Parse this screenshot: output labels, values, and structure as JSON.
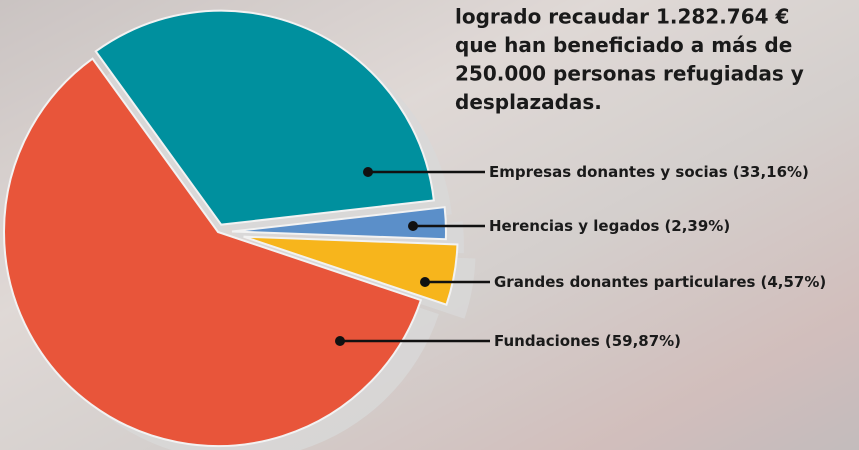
{
  "chart_data": {
    "type": "pie",
    "annotation_lines": [
      "logrado recaudar 1.282.764 €",
      "que han beneficiado a más de",
      "250.000 personas refugiadas y",
      "desplazadas."
    ],
    "categories": [
      "Empresas donantes y socias",
      "Herencias y legados",
      "Grandes donantes particulares",
      "Fundaciones"
    ],
    "values": [
      33.16,
      2.39,
      4.57,
      59.87
    ],
    "value_labels": [
      "(33,16%)",
      "(2,39%)",
      "(4,57%)",
      "(59,87%)"
    ],
    "colors": [
      "#00909e",
      "#5b8fc9",
      "#f7b51c",
      "#e8553a"
    ]
  }
}
